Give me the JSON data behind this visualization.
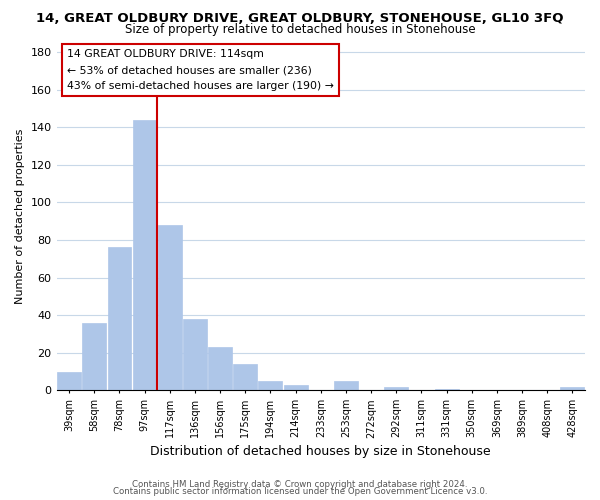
{
  "title": "14, GREAT OLDBURY DRIVE, GREAT OLDBURY, STONEHOUSE, GL10 3FQ",
  "subtitle": "Size of property relative to detached houses in Stonehouse",
  "xlabel": "Distribution of detached houses by size in Stonehouse",
  "ylabel": "Number of detached properties",
  "bar_labels": [
    "39sqm",
    "58sqm",
    "78sqm",
    "97sqm",
    "117sqm",
    "136sqm",
    "156sqm",
    "175sqm",
    "194sqm",
    "214sqm",
    "233sqm",
    "253sqm",
    "272sqm",
    "292sqm",
    "311sqm",
    "331sqm",
    "350sqm",
    "369sqm",
    "389sqm",
    "408sqm",
    "428sqm"
  ],
  "bar_values": [
    10,
    36,
    76,
    144,
    88,
    38,
    23,
    14,
    5,
    3,
    0,
    5,
    0,
    2,
    0,
    1,
    0,
    0,
    0,
    0,
    2
  ],
  "bar_color": "#aec6e8",
  "vline_x_index": 3,
  "vline_color": "#cc0000",
  "annotation_title": "14 GREAT OLDBURY DRIVE: 114sqm",
  "annotation_line1": "← 53% of detached houses are smaller (236)",
  "annotation_line2": "43% of semi-detached houses are larger (190) →",
  "annotation_box_color": "#ffffff",
  "annotation_box_edge": "#cc0000",
  "ylim": [
    0,
    185
  ],
  "yticks": [
    0,
    20,
    40,
    60,
    80,
    100,
    120,
    140,
    160,
    180
  ],
  "footer1": "Contains HM Land Registry data © Crown copyright and database right 2024.",
  "footer2": "Contains public sector information licensed under the Open Government Licence v3.0.",
  "bg_color": "#ffffff",
  "grid_color": "#c8d8e8",
  "fig_width": 6.0,
  "fig_height": 5.0
}
